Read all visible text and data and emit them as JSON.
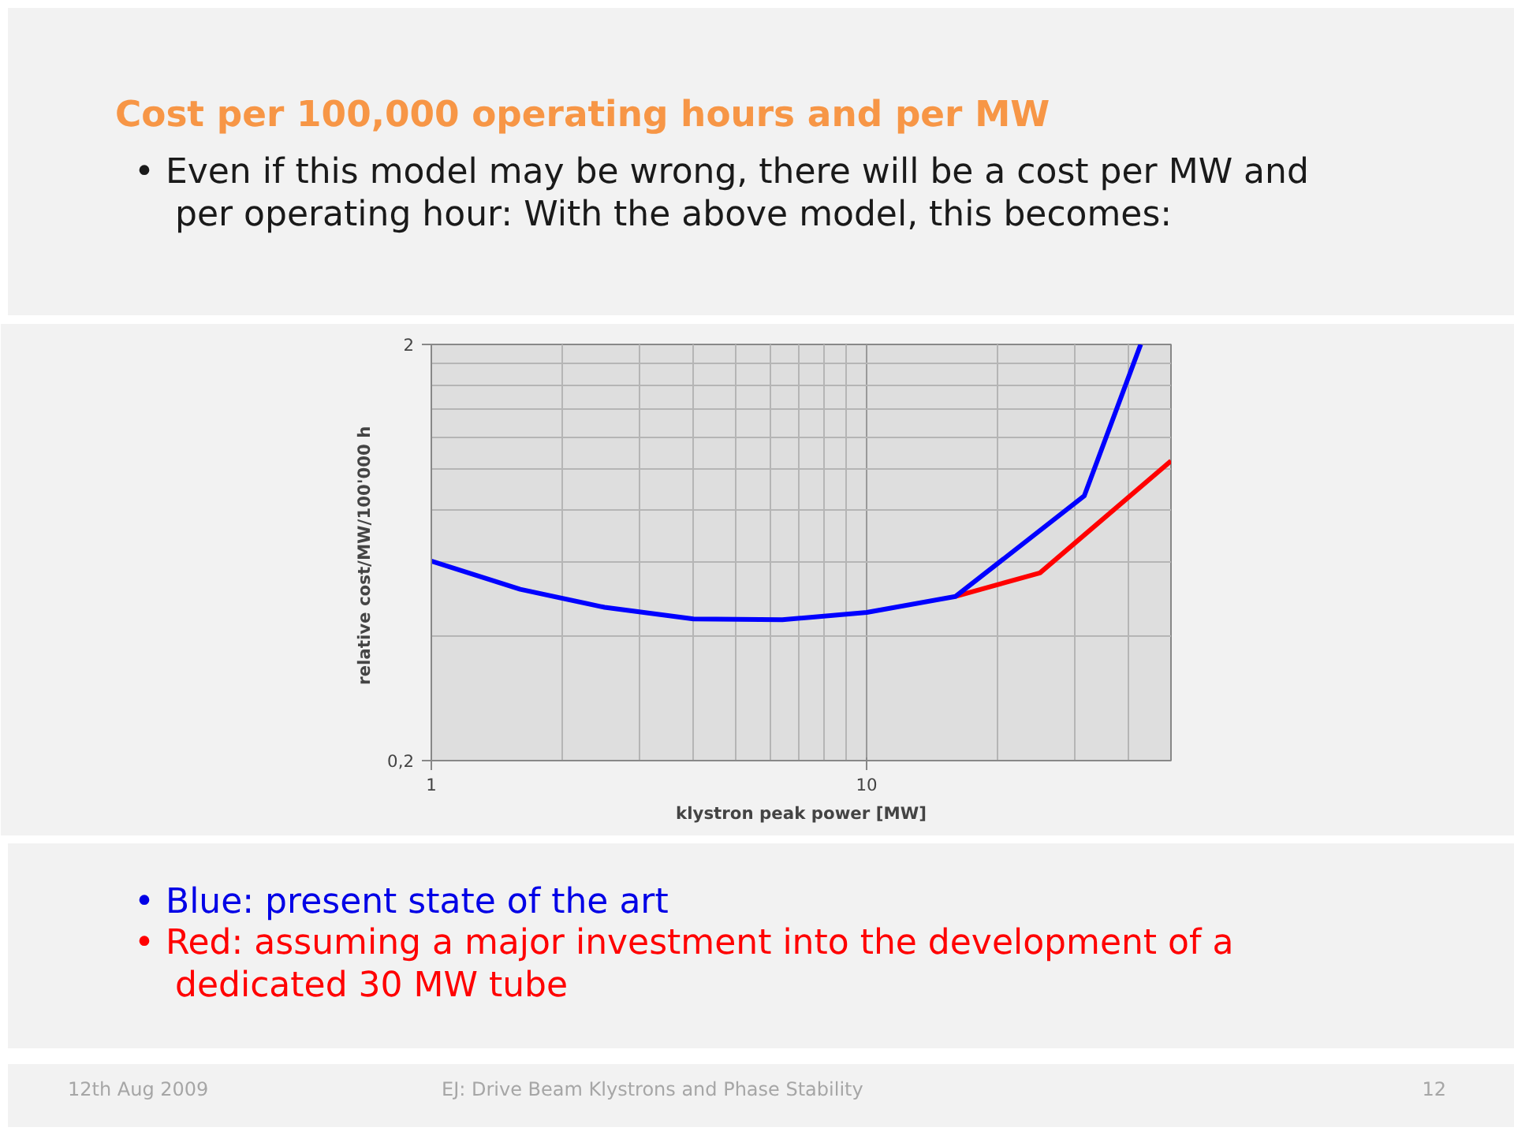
{
  "chart_data": {
    "type": "line",
    "title": "Cost per 100,000 operating hours and per MW",
    "xlabel": "klystron peak power [MW]",
    "ylabel": "relative cost/MW/100'000  h",
    "log": "xy",
    "xlim": [
      1,
      50
    ],
    "ylim": [
      0.2,
      2
    ],
    "xticks": [
      1,
      10
    ],
    "yticks": [
      {
        "value": 0.2,
        "label": "0,2"
      },
      2
    ],
    "grid": true,
    "line_style": "solid",
    "marker": "none",
    "series": [
      {
        "color": "#ff0000",
        "x": [
          16,
          25,
          50
        ],
        "values": [
          0.496,
          0.565,
          1.05
        ]
      },
      {
        "color": "#0000ff",
        "x": [
          1,
          1.6,
          2.5,
          4,
          6.4,
          10,
          16,
          31.6,
          42.6
        ],
        "values": [
          0.603,
          0.516,
          0.467,
          0.438,
          0.436,
          0.454,
          0.496,
          0.865,
          2
        ]
      }
    ],
    "annotations": [
      "• Even if this model may be wrong, there will be a cost per MW and per operating hour: With the above model, this becomes:",
      "• Blue: present state of the art",
      "• Red: assuming a major investment into the development of a dedicated 30 MW tube",
      "12th Aug 2009",
      "EJ: Drive Beam Klystrons and Phase Stability",
      "12"
    ]
  }
}
